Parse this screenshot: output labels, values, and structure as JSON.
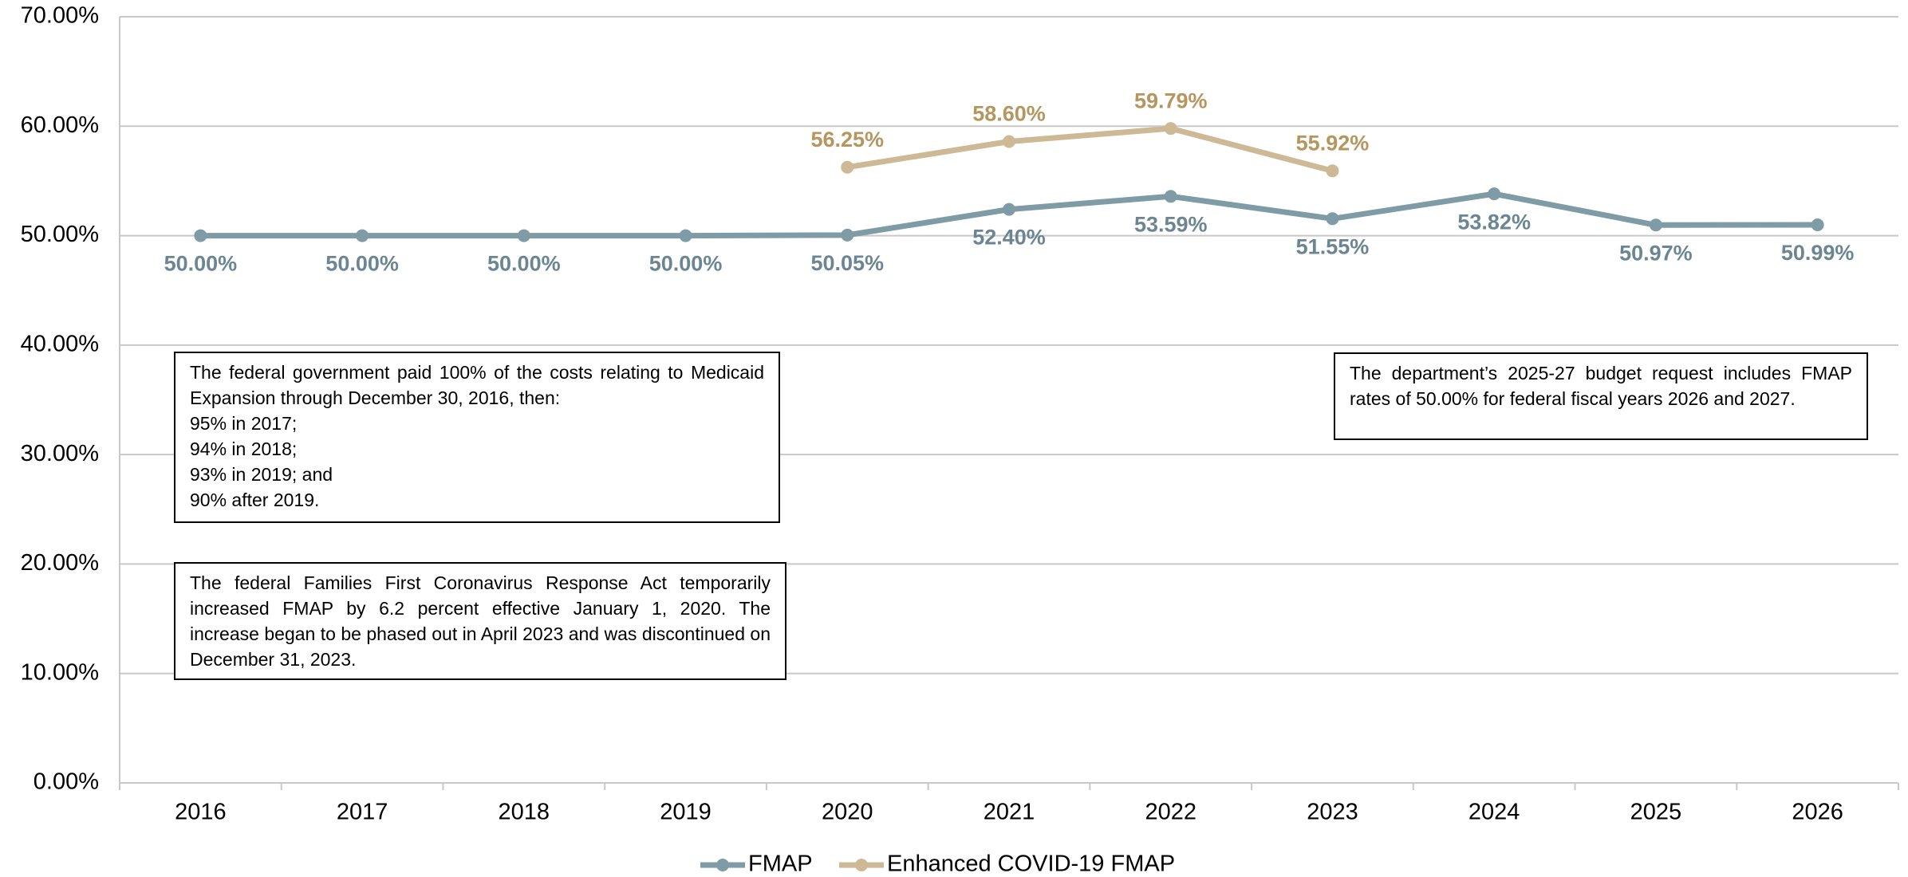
{
  "chart_data": {
    "type": "line",
    "categories": [
      "2016",
      "2017",
      "2018",
      "2019",
      "2020",
      "2021",
      "2022",
      "2023",
      "2024",
      "2025",
      "2026"
    ],
    "series": [
      {
        "name": "FMAP",
        "color": "#7f9ba6",
        "label_color": "#6b8692",
        "values": [
          50.0,
          50.0,
          50.0,
          50.0,
          50.05,
          52.4,
          53.59,
          51.55,
          53.82,
          50.97,
          50.99
        ],
        "value_labels": [
          "50.00%",
          "50.00%",
          "50.00%",
          "50.00%",
          "50.05%",
          "52.40%",
          "53.59%",
          "51.55%",
          "53.82%",
          "50.97%",
          "50.99%"
        ]
      },
      {
        "name": "Enhanced COVID-19 FMAP",
        "color": "#cdb995",
        "label_color": "#b5965f",
        "values": [
          null,
          null,
          null,
          null,
          56.25,
          58.6,
          59.79,
          55.92,
          null,
          null,
          null
        ],
        "value_labels": [
          null,
          null,
          null,
          null,
          "56.25%",
          "58.60%",
          "59.79%",
          "55.92%",
          null,
          null,
          null
        ]
      }
    ],
    "ylim": [
      0,
      70
    ],
    "yticks": [
      {
        "value": 0,
        "label": "0.00%"
      },
      {
        "value": 10,
        "label": "10.00%"
      },
      {
        "value": 20,
        "label": "20.00%"
      },
      {
        "value": 30,
        "label": "30.00%"
      },
      {
        "value": 40,
        "label": "40.00%"
      },
      {
        "value": 50,
        "label": "50.00%"
      },
      {
        "value": 60,
        "label": "60.00%"
      },
      {
        "value": 70,
        "label": "70.00%"
      }
    ],
    "grid": true,
    "legend": "bottom",
    "annotations": [
      {
        "paragraphs": [
          "The federal government paid 100% of the costs relating to Medicaid Expansion through December 30, 2016, then:",
          "95% in 2017;",
          "94% in 2018;",
          "93% in 2019; and",
          "90% after 2019."
        ]
      },
      {
        "paragraphs": [
          "The federal Families First Coronavirus Response Act temporarily increased FMAP by 6.2 percent effective January 1, 2020. The increase began to be phased out in April 2023 and was discontinued on December 31, 2023."
        ]
      },
      {
        "paragraphs": [
          "The department’s 2025-27 budget request includes FMAP rates of 50.00% for federal fiscal years 2026 and 2027."
        ]
      }
    ]
  }
}
